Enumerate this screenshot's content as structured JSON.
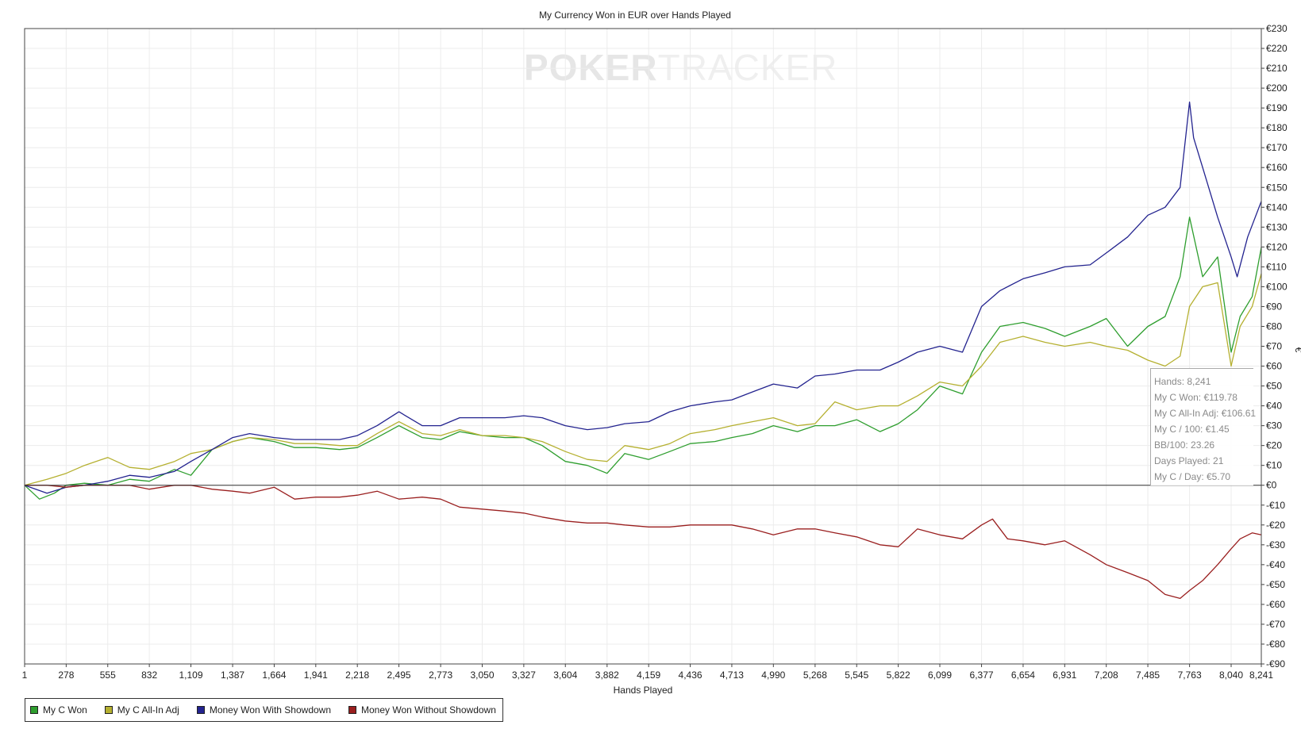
{
  "watermark": {
    "brand_a": "POKER",
    "brand_b": "TRACKER"
  },
  "chart_data": {
    "type": "line",
    "title": "My Currency Won in EUR over Hands Played",
    "xlabel": "Hands Played",
    "ylabel": "€",
    "xlim": [
      1,
      8241
    ],
    "ylim": [
      -90,
      230
    ],
    "x_ticks": [
      1,
      278,
      555,
      832,
      1109,
      1387,
      1664,
      1941,
      2218,
      2495,
      2773,
      3050,
      3327,
      3604,
      3882,
      4159,
      4436,
      4713,
      4990,
      5268,
      5545,
      5822,
      6099,
      6377,
      6654,
      6931,
      7208,
      7485,
      7763,
      8040,
      8241
    ],
    "x_tick_labels": [
      "1",
      "278",
      "555",
      "832",
      "1,109",
      "1,387",
      "1,664",
      "1,941",
      "2,218",
      "2,495",
      "2,773",
      "3,050",
      "3,327",
      "3,604",
      "3,882",
      "4,159",
      "4,436",
      "4,713",
      "4,990",
      "5,268",
      "5,545",
      "5,822",
      "6,099",
      "6,377",
      "6,654",
      "6,931",
      "7,208",
      "7,485",
      "7,763",
      "8,040",
      "8,241"
    ],
    "y_ticks": [
      230,
      220,
      210,
      200,
      190,
      180,
      170,
      160,
      150,
      140,
      130,
      120,
      110,
      100,
      90,
      80,
      70,
      60,
      50,
      40,
      30,
      20,
      10,
      0,
      -10,
      -20,
      -30,
      -40,
      -50,
      -60,
      -70,
      -80,
      -90
    ],
    "y_tick_labels": [
      "€230",
      "€220",
      "€210",
      "€200",
      "€190",
      "€180",
      "€170",
      "€160",
      "€150",
      "€140",
      "€130",
      "€120",
      "€110",
      "€100",
      "€90",
      "€80",
      "€70",
      "€60",
      "€50",
      "€40",
      "€30",
      "€20",
      "€10",
      "€0",
      "-€10",
      "-€20",
      "-€30",
      "-€40",
      "-€50",
      "-€60",
      "-€70",
      "-€80",
      "-€90"
    ],
    "grid": true,
    "legend_position": "bottom-left",
    "series": [
      {
        "name": "My C Won",
        "color": "#2e9e2e",
        "x": [
          1,
          100,
          200,
          278,
          400,
          555,
          700,
          832,
          1000,
          1109,
          1250,
          1387,
          1500,
          1664,
          1800,
          1941,
          2100,
          2218,
          2350,
          2495,
          2650,
          2773,
          2900,
          3050,
          3200,
          3327,
          3450,
          3604,
          3750,
          3882,
          4000,
          4159,
          4300,
          4436,
          4600,
          4713,
          4850,
          4990,
          5150,
          5268,
          5400,
          5545,
          5700,
          5822,
          5950,
          6099,
          6250,
          6377,
          6500,
          6654,
          6800,
          6931,
          7100,
          7208,
          7350,
          7485,
          7600,
          7700,
          7763,
          7850,
          7950,
          8040,
          8100,
          8180,
          8241
        ],
        "y": [
          0,
          -7,
          -4,
          0,
          1,
          0,
          3,
          2,
          8,
          5,
          18,
          22,
          24,
          22,
          19,
          19,
          18,
          19,
          24,
          30,
          24,
          23,
          27,
          25,
          24,
          24,
          20,
          12,
          10,
          6,
          16,
          13,
          17,
          21,
          22,
          24,
          26,
          30,
          27,
          30,
          30,
          33,
          27,
          31,
          38,
          50,
          46,
          67,
          80,
          82,
          79,
          75,
          80,
          84,
          70,
          80,
          85,
          105,
          135,
          105,
          115,
          67,
          85,
          95,
          119.78
        ]
      },
      {
        "name": "My C All-In Adj",
        "color": "#b5b030",
        "x": [
          1,
          150,
          278,
          400,
          555,
          700,
          832,
          1000,
          1109,
          1250,
          1387,
          1500,
          1664,
          1800,
          1941,
          2100,
          2218,
          2350,
          2495,
          2650,
          2773,
          2900,
          3050,
          3200,
          3327,
          3450,
          3604,
          3750,
          3882,
          4000,
          4159,
          4300,
          4436,
          4600,
          4713,
          4850,
          4990,
          5150,
          5268,
          5400,
          5545,
          5700,
          5822,
          5950,
          6099,
          6250,
          6377,
          6500,
          6654,
          6800,
          6931,
          7100,
          7208,
          7350,
          7485,
          7600,
          7700,
          7763,
          7850,
          7950,
          8040,
          8100,
          8180,
          8241
        ],
        "y": [
          0,
          3,
          6,
          10,
          14,
          9,
          8,
          12,
          16,
          18,
          22,
          24,
          23,
          21,
          21,
          20,
          20,
          26,
          32,
          26,
          25,
          28,
          25,
          25,
          24,
          22,
          17,
          13,
          12,
          20,
          18,
          21,
          26,
          28,
          30,
          32,
          34,
          30,
          31,
          42,
          38,
          40,
          40,
          45,
          52,
          50,
          60,
          72,
          75,
          72,
          70,
          72,
          70,
          68,
          63,
          60,
          65,
          90,
          100,
          102,
          60,
          80,
          90,
          106.61
        ]
      },
      {
        "name": "Money Won With Showdown",
        "color": "#23238f",
        "x": [
          1,
          150,
          278,
          400,
          555,
          700,
          832,
          1000,
          1109,
          1250,
          1387,
          1500,
          1664,
          1800,
          1941,
          2100,
          2218,
          2350,
          2495,
          2650,
          2773,
          2900,
          3050,
          3200,
          3327,
          3450,
          3604,
          3750,
          3882,
          4000,
          4159,
          4300,
          4436,
          4600,
          4713,
          4850,
          4990,
          5150,
          5268,
          5400,
          5545,
          5700,
          5822,
          5950,
          6099,
          6250,
          6377,
          6500,
          6654,
          6800,
          6931,
          7100,
          7208,
          7350,
          7485,
          7600,
          7700,
          7763,
          7790,
          7850,
          7950,
          8040,
          8080,
          8150,
          8241
        ],
        "y": [
          0,
          -4,
          -1,
          0,
          2,
          5,
          4,
          7,
          12,
          18,
          24,
          26,
          24,
          23,
          23,
          23,
          25,
          30,
          37,
          30,
          30,
          34,
          34,
          34,
          35,
          34,
          30,
          28,
          29,
          31,
          32,
          37,
          40,
          42,
          43,
          47,
          51,
          49,
          55,
          56,
          58,
          58,
          62,
          67,
          70,
          67,
          90,
          98,
          104,
          107,
          110,
          111,
          117,
          125,
          136,
          140,
          150,
          193,
          175,
          160,
          135,
          115,
          105,
          125,
          143
        ]
      },
      {
        "name": "Money Won Without Showdown",
        "color": "#9a1f1f",
        "x": [
          1,
          150,
          278,
          400,
          555,
          700,
          832,
          1000,
          1109,
          1250,
          1387,
          1500,
          1664,
          1800,
          1941,
          2100,
          2218,
          2350,
          2495,
          2650,
          2773,
          2900,
          3050,
          3200,
          3327,
          3450,
          3604,
          3750,
          3882,
          4000,
          4159,
          4300,
          4436,
          4600,
          4713,
          4850,
          4990,
          5150,
          5268,
          5400,
          5545,
          5700,
          5822,
          5950,
          6099,
          6250,
          6377,
          6450,
          6550,
          6654,
          6800,
          6931,
          7100,
          7208,
          7350,
          7485,
          7600,
          7700,
          7763,
          7850,
          7950,
          8040,
          8100,
          8180,
          8241
        ],
        "y": [
          0,
          0,
          -1,
          0,
          0,
          0,
          -2,
          0,
          0,
          -2,
          -3,
          -4,
          -1,
          -7,
          -6,
          -6,
          -5,
          -3,
          -7,
          -6,
          -7,
          -11,
          -12,
          -13,
          -14,
          -16,
          -18,
          -19,
          -19,
          -20,
          -21,
          -21,
          -20,
          -20,
          -20,
          -22,
          -25,
          -22,
          -22,
          -24,
          -26,
          -30,
          -31,
          -22,
          -25,
          -27,
          -20,
          -17,
          -27,
          -28,
          -30,
          -28,
          -35,
          -40,
          -44,
          -48,
          -55,
          -57,
          -53,
          -48,
          -40,
          -32,
          -27,
          -24,
          -25
        ]
      }
    ]
  },
  "tooltip": {
    "hands": "Hands: 8,241",
    "won": "My C Won: €119.78",
    "allin": "My C All-In Adj: €106.61",
    "per100": "My C / 100: €1.45",
    "bb100": "BB/100: 23.26",
    "days": "Days Played: 21",
    "perday": "My C / Day: €5.70"
  }
}
